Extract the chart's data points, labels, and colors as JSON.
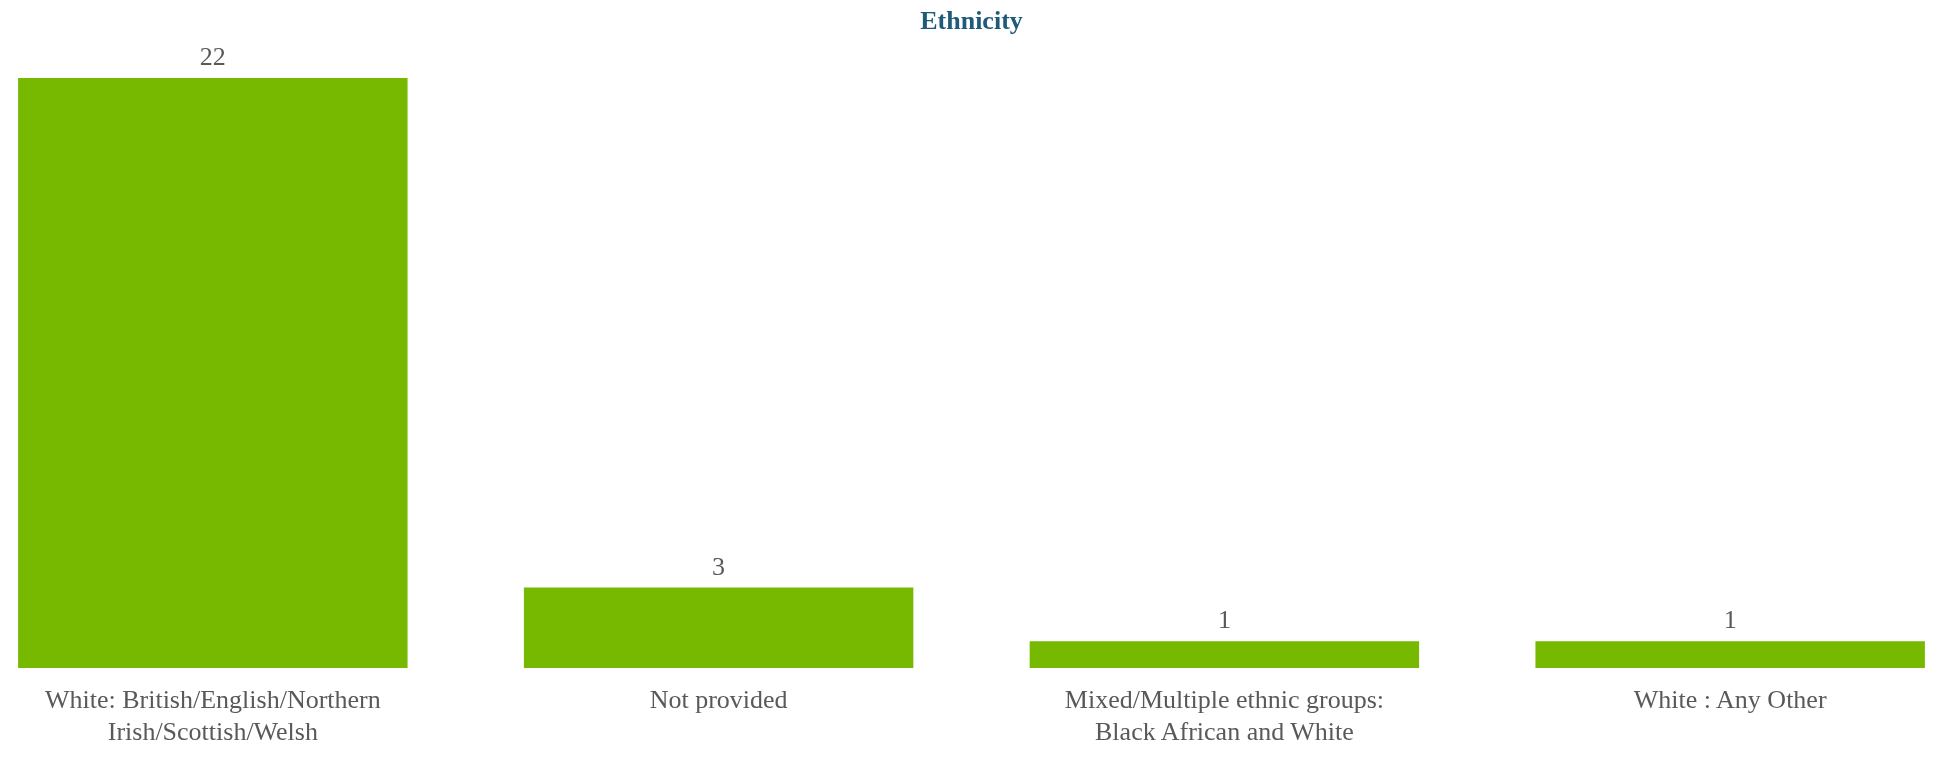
{
  "chart_data": {
    "type": "bar",
    "title": "Ethnicity",
    "categories": [
      "White: British/English/Northern Irish/Scottish/Welsh",
      "Not provided",
      "Mixed/Multiple ethnic groups: Black African and White",
      "White : Any Other"
    ],
    "values": [
      22,
      3,
      1,
      1
    ],
    "color": "#76b900",
    "data_labels": true
  }
}
